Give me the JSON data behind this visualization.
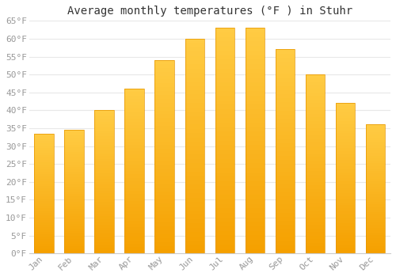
{
  "title": "Average monthly temperatures (°F ) in Stuhr",
  "months": [
    "Jan",
    "Feb",
    "Mar",
    "Apr",
    "May",
    "Jun",
    "Jul",
    "Aug",
    "Sep",
    "Oct",
    "Nov",
    "Dec"
  ],
  "values": [
    33.5,
    34.5,
    40.0,
    46.0,
    54.0,
    60.0,
    63.0,
    63.0,
    57.0,
    50.0,
    42.0,
    36.0
  ],
  "bar_color_top": "#FFCC44",
  "bar_color_bottom": "#F5A000",
  "bar_edge_color": "#E59500",
  "background_color": "#FFFFFF",
  "plot_bg_color": "#FFFFFF",
  "ylim": [
    0,
    65
  ],
  "yticks": [
    0,
    5,
    10,
    15,
    20,
    25,
    30,
    35,
    40,
    45,
    50,
    55,
    60,
    65
  ],
  "grid_color": "#E8E8E8",
  "title_fontsize": 10,
  "tick_fontsize": 8,
  "tick_color": "#999999"
}
